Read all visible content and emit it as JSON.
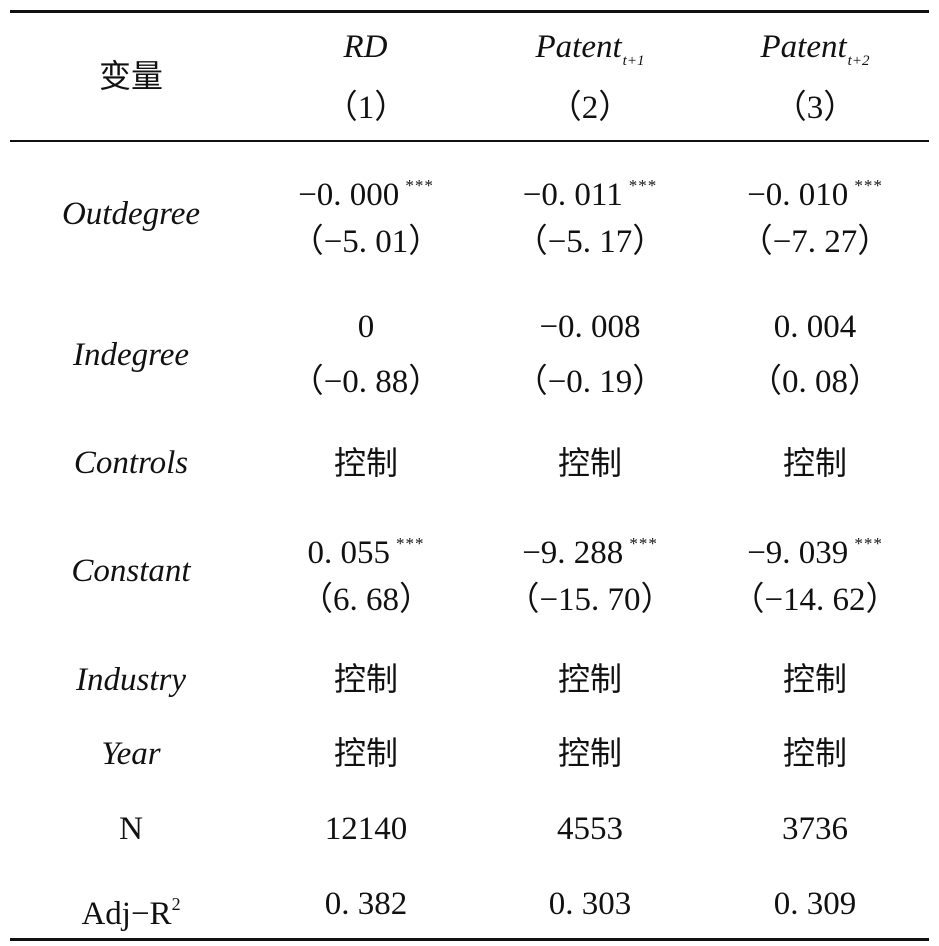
{
  "header": {
    "variable_label": "变量",
    "columns": [
      {
        "name": "RD",
        "subscript": "",
        "number": "（1）"
      },
      {
        "name": "Patent",
        "subscript": "t+1",
        "number": "（2）"
      },
      {
        "name": "Patent",
        "subscript": "t+2",
        "number": "（3）"
      }
    ]
  },
  "rows": [
    {
      "label": "Outdegree",
      "values": [
        "−0. 000",
        "−0. 011",
        "−0. 010"
      ],
      "stars": [
        "***",
        "***",
        "***"
      ],
      "tstats": [
        "（−5. 01）",
        "（−5. 17）",
        "（−7. 27）"
      ]
    },
    {
      "label": "Indegree",
      "values": [
        "0",
        "−0. 008",
        "0. 004"
      ],
      "tstats": [
        "（−0. 88）",
        "（−0. 19）",
        "（0. 08）"
      ]
    },
    {
      "label": "Controls",
      "values": [
        "控制",
        "控制",
        "控制"
      ]
    },
    {
      "label": "Constant",
      "values": [
        "0. 055",
        "−9. 288",
        "−9. 039"
      ],
      "stars": [
        "***",
        "***",
        "***"
      ],
      "tstats": [
        "（6. 68）",
        "（−15. 70）",
        "（−14. 62）"
      ]
    },
    {
      "label": "Industry",
      "values": [
        "控制",
        "控制",
        "控制"
      ]
    },
    {
      "label": "Year",
      "values": [
        "控制",
        "控制",
        "控制"
      ]
    },
    {
      "label": "N",
      "values": [
        "12140",
        "4553",
        "3736"
      ]
    },
    {
      "label": "Adj−R",
      "label_superscript": "2",
      "values": [
        "0. 382",
        "0. 303",
        "0. 309"
      ]
    }
  ]
}
